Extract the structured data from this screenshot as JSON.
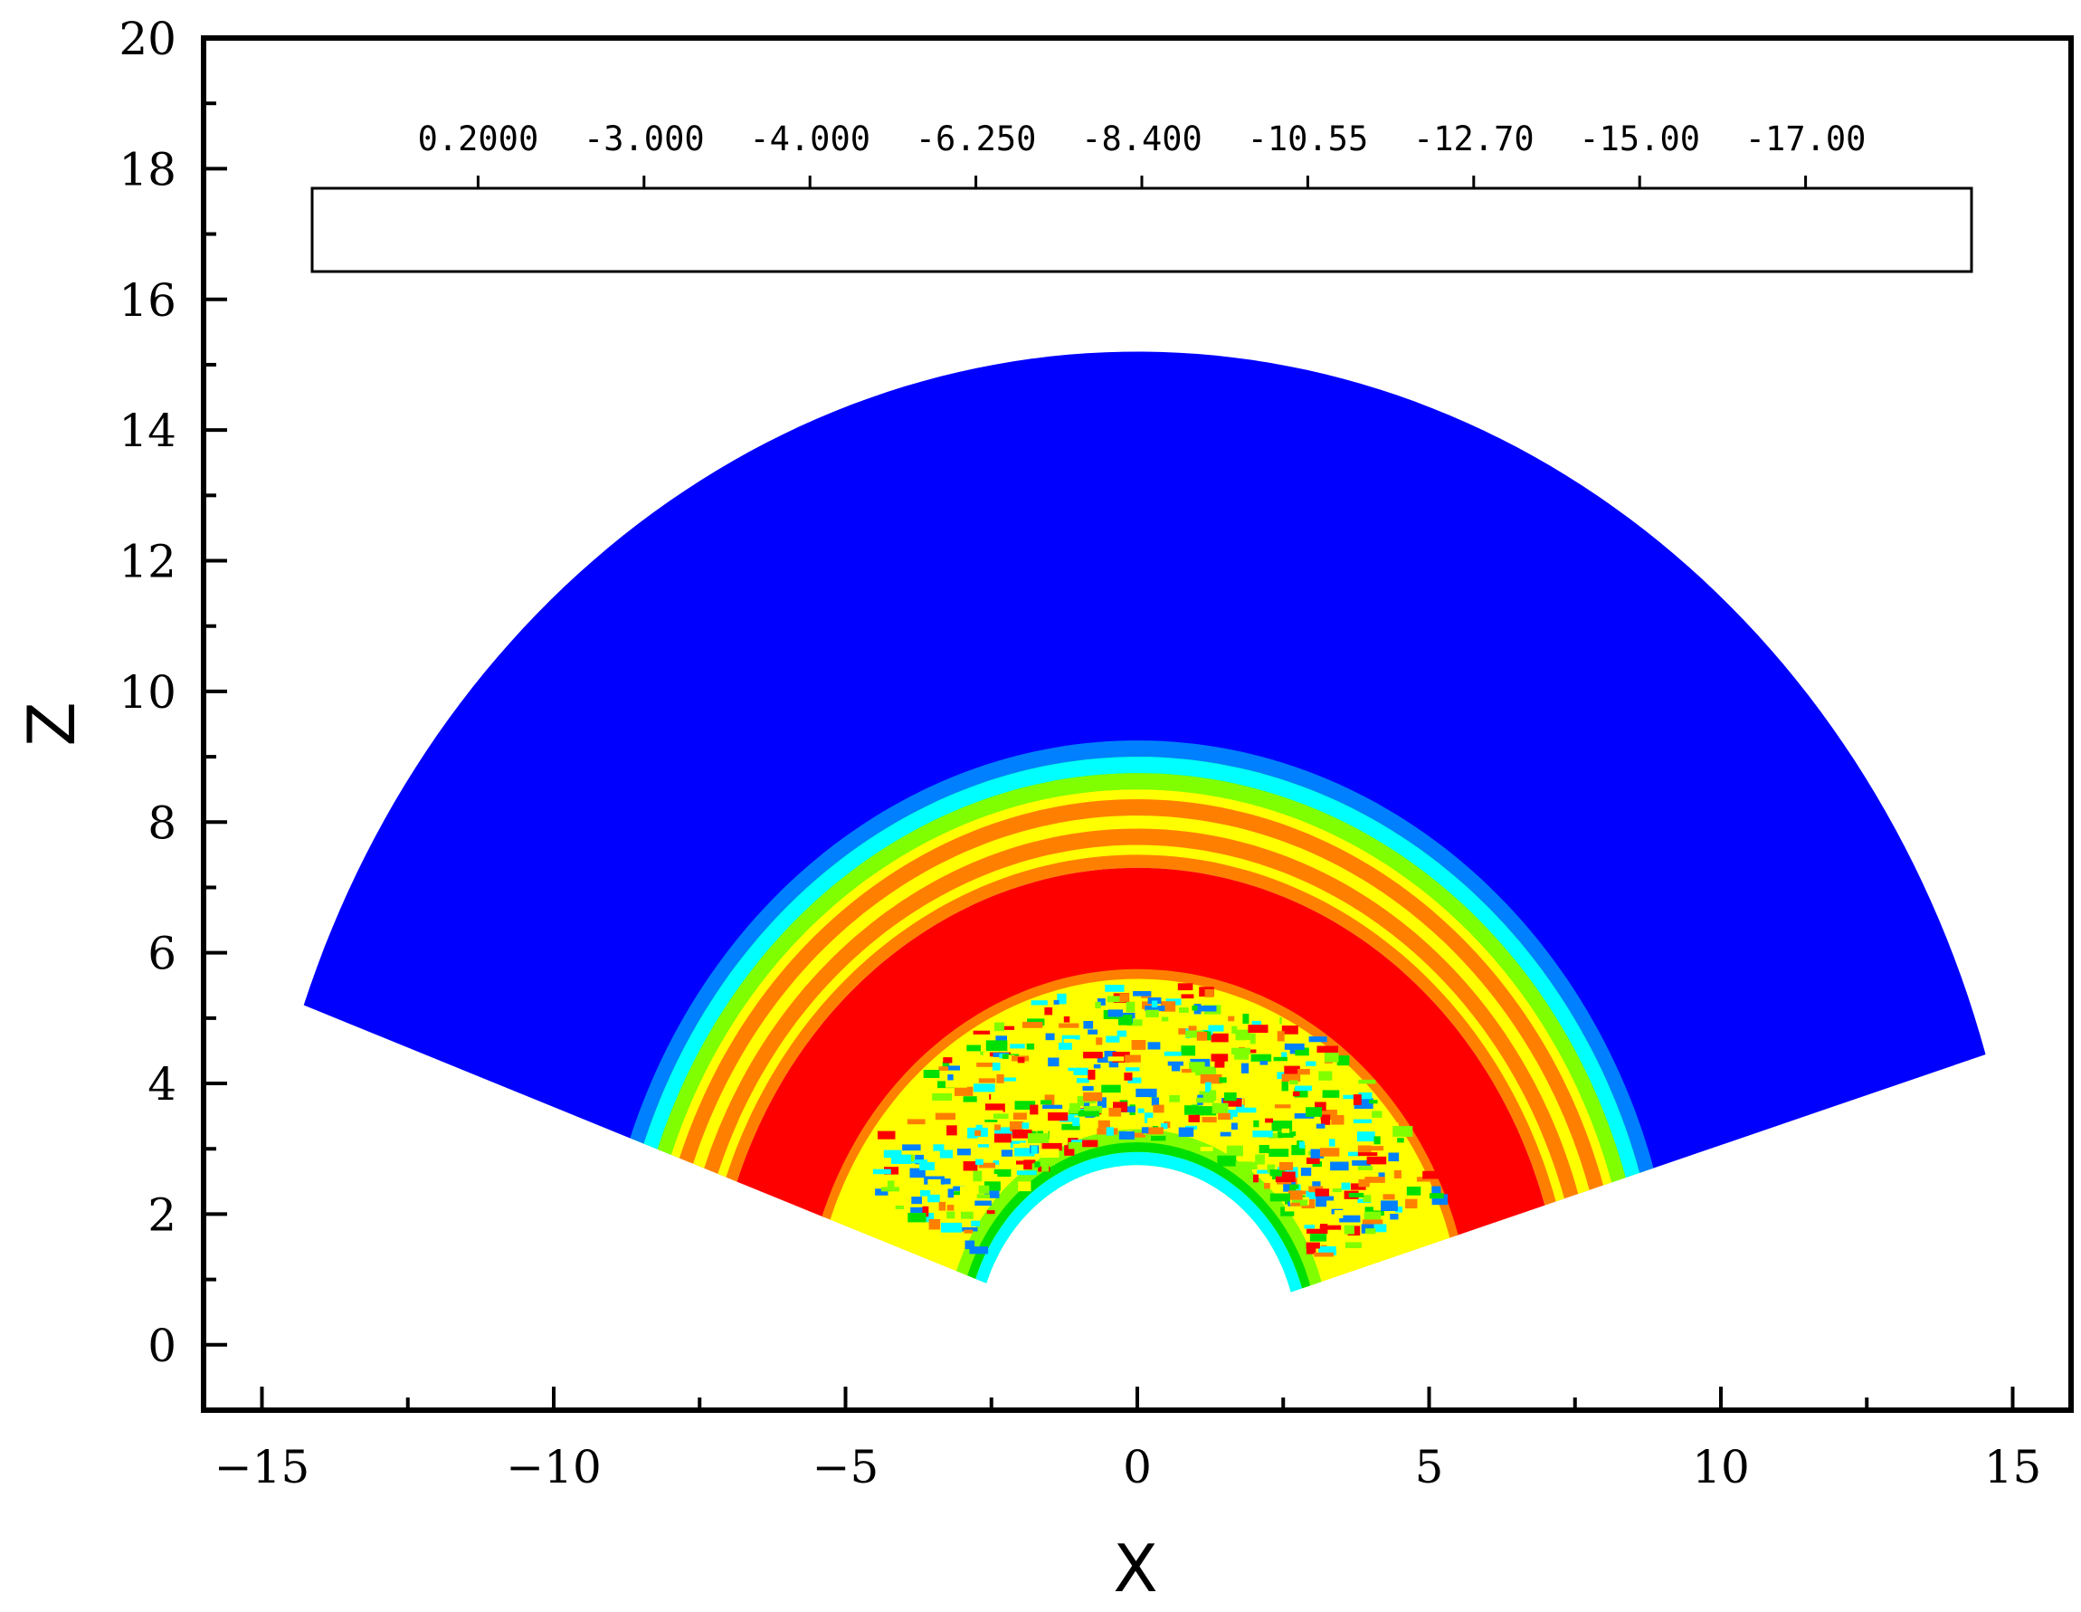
{
  "chart_data": {
    "type": "heatmap",
    "title": "",
    "xlabel": "X",
    "ylabel": "Z",
    "xlim": [
      -16,
      16
    ],
    "ylim": [
      -1,
      20
    ],
    "x_ticks": [
      -15,
      -10,
      -5,
      0,
      5,
      10,
      15
    ],
    "x_tick_labels": [
      "−15",
      "−10",
      "−5",
      "0",
      "5",
      "10",
      "15"
    ],
    "y_ticks": [
      0,
      2,
      4,
      6,
      8,
      10,
      12,
      14,
      16,
      18,
      20
    ],
    "y_tick_labels": [
      "0",
      "2",
      "4",
      "6",
      "8",
      "10",
      "12",
      "14",
      "16",
      "18",
      "20"
    ],
    "grid": false,
    "legend_placement": "top",
    "colorbar": {
      "labels": [
        "0.2000",
        "-3.000",
        "-4.000",
        "-6.250",
        "-8.400",
        "-10.55",
        "-12.70",
        "-15.00",
        "-17.00"
      ],
      "colors": [
        "#bfbfbf",
        "#0000ff",
        "#0080ff",
        "#00ffff",
        "#00e000",
        "#80ff00",
        "#ffff00",
        "#ff8000",
        "#ff0000",
        "#000000"
      ]
    },
    "field": {
      "description_values": "contour field over a fan-shaped domain centered at origin",
      "zones": [
        {
          "r_min": 9.2,
          "r_max": 15.2,
          "value_class": 1
        },
        {
          "r_min": 8.4,
          "r_max": 9.2,
          "value_class": 4
        },
        {
          "r_min": 7.3,
          "r_max": 8.4,
          "value_class": 7
        },
        {
          "r_min": 5.7,
          "r_max": 7.3,
          "value_class": 8
        },
        {
          "r_min": 2.75,
          "r_max": 5.7,
          "value_class": 6
        }
      ],
      "domain": {
        "outer_radius": 15.2,
        "inner_radius": 2.75,
        "edge_angle_deg_left": 160,
        "edge_angle_deg_right": 17
      }
    }
  }
}
